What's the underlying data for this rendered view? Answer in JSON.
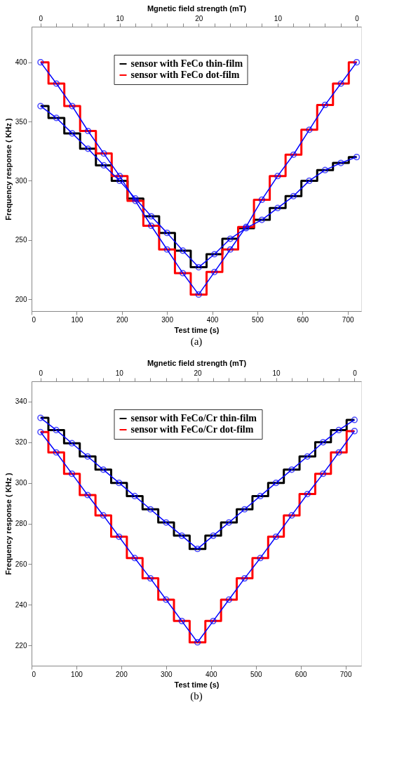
{
  "chart_data": [
    {
      "type": "step",
      "xlabel": "Test time (s)",
      "ylabel": "Frequency response ( KHz )",
      "x2label": "Mgnetic field strength (mT)",
      "annotations": [
        "(a)",
        "0",
        "10",
        "20",
        "10",
        "0"
      ],
      "x": [
        20,
        55,
        90,
        125,
        160,
        195,
        230,
        265,
        300,
        335,
        370,
        405,
        440,
        475,
        510,
        545,
        580,
        615,
        650,
        685,
        720
      ],
      "xlim": [
        0,
        730
      ],
      "xticks": [
        0,
        100,
        200,
        300,
        400,
        500,
        600,
        700
      ],
      "ylim": [
        190,
        430
      ],
      "yticks": [
        200,
        250,
        300,
        350,
        400
      ],
      "grid": false,
      "legend": "top",
      "series": [
        {
          "name": "sensor with FeCo thin-film",
          "color": "#000000",
          "values": [
            363,
            353,
            340,
            327,
            313,
            300,
            285,
            270,
            256,
            241,
            227,
            238,
            251,
            260,
            267,
            277,
            287,
            300,
            309,
            315,
            320
          ]
        },
        {
          "name": "sensor with FeCo dot-film",
          "color": "#ff0000",
          "values": [
            400,
            382,
            363,
            342,
            323,
            304,
            283,
            262,
            242,
            222,
            204,
            223,
            242,
            261,
            284,
            304,
            322,
            343,
            364,
            382,
            400
          ]
        },
        {
          "color": "#0000ff",
          "type": "line",
          "marker": "circle",
          "values": [
            363,
            353,
            340,
            327,
            313,
            300,
            285,
            270,
            256,
            241,
            227,
            238,
            251,
            260,
            267,
            277,
            287,
            300,
            309,
            315,
            320
          ]
        },
        {
          "color": "#0000ff",
          "type": "line",
          "marker": "circle",
          "values": [
            400,
            382,
            363,
            342,
            323,
            304,
            283,
            262,
            242,
            222,
            204,
            223,
            242,
            261,
            284,
            304,
            322,
            343,
            364,
            382,
            400
          ]
        }
      ]
    },
    {
      "type": "step",
      "xlabel": "Test time (s)",
      "ylabel": "Frequency response ( KHz )",
      "x2label": "Mgnetic field strength (mT)",
      "annotations": [
        "(b)",
        "0",
        "10",
        "20",
        "10",
        "0"
      ],
      "x": [
        20,
        55,
        90,
        125,
        160,
        195,
        230,
        265,
        300,
        335,
        370,
        405,
        440,
        475,
        510,
        545,
        580,
        615,
        650,
        685,
        720
      ],
      "xlim": [
        0,
        735
      ],
      "xticks": [
        0,
        100,
        200,
        300,
        400,
        500,
        600,
        700
      ],
      "ylim": [
        210,
        350
      ],
      "yticks": [
        220,
        240,
        260,
        280,
        300,
        320,
        340
      ],
      "grid": false,
      "legend": "top",
      "series": [
        {
          "name": "sensor with FeCo/Cr thin-film",
          "color": "#000000",
          "values": [
            332,
            326,
            319.5,
            313,
            306.5,
            300,
            293.5,
            287,
            280.5,
            274,
            267.5,
            274,
            280.5,
            287,
            293.5,
            300,
            306.5,
            313,
            320,
            326,
            331
          ]
        },
        {
          "name": "sensor with FeCo/Cr dot-film",
          "color": "#ff0000",
          "values": [
            325,
            315,
            304.5,
            294,
            284,
            273.5,
            263,
            253,
            242.5,
            232,
            221.5,
            232,
            242.5,
            253,
            263,
            273.5,
            284,
            294.5,
            304.5,
            315,
            325.5
          ]
        },
        {
          "color": "#0000ff",
          "type": "line",
          "marker": "circle",
          "values": [
            332,
            326,
            319.5,
            313,
            306.5,
            300,
            293.5,
            287,
            280.5,
            274,
            267.5,
            274,
            280.5,
            287,
            293.5,
            300,
            306.5,
            313,
            320,
            326,
            331
          ]
        },
        {
          "color": "#0000ff",
          "type": "line",
          "marker": "circle",
          "values": [
            325,
            315,
            304.5,
            294,
            284,
            273.5,
            263,
            253,
            242.5,
            232,
            221.5,
            232,
            242.5,
            253,
            263,
            273.5,
            284,
            294.5,
            304.5,
            315,
            325.5
          ]
        }
      ]
    }
  ]
}
